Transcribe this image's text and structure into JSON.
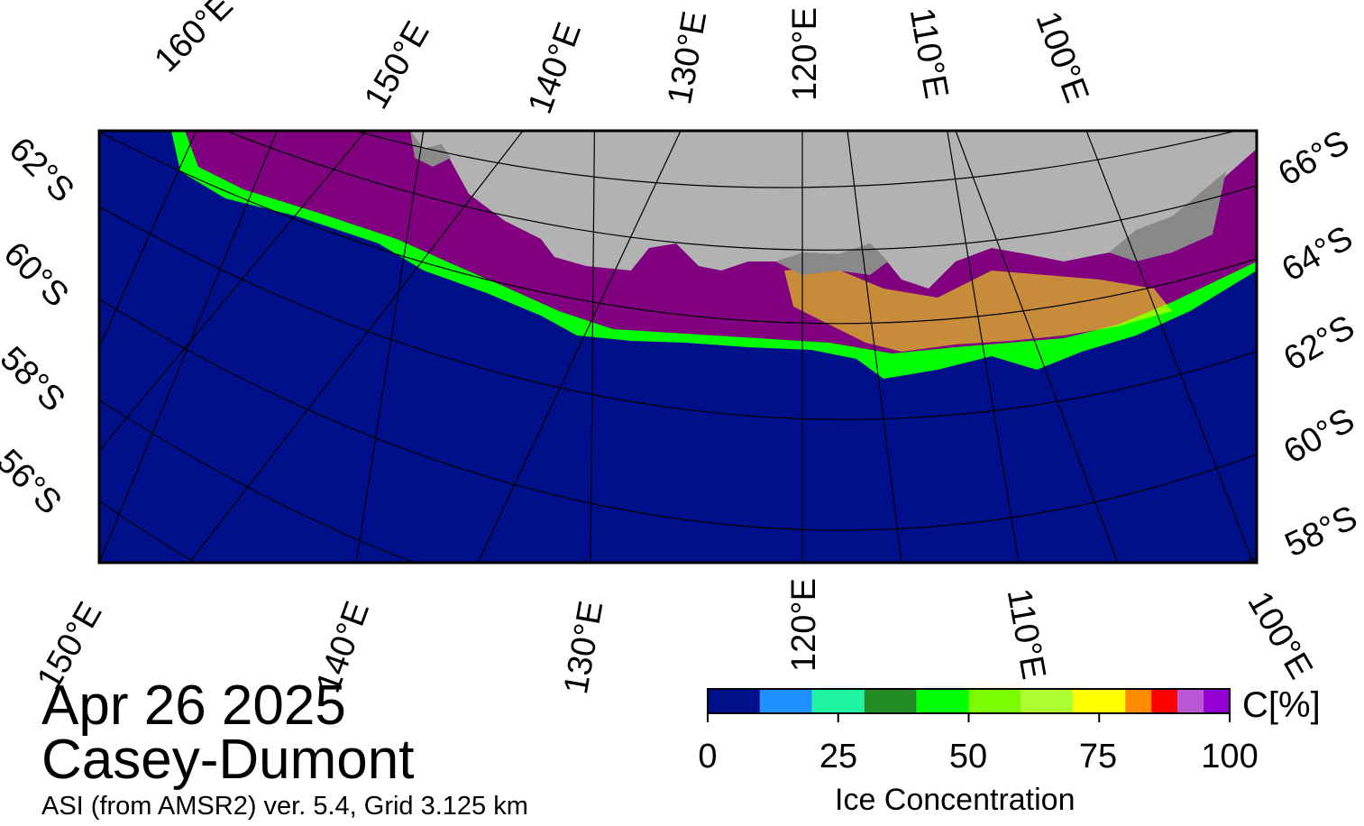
{
  "map": {
    "date": "Apr 26 2025",
    "region": "Casey-Dumont",
    "product": "ASI (from AMSR2) ver. 5.4,  Grid 3.125 km",
    "colors": {
      "ocean": "#000f8a",
      "land": "#b2b2b2",
      "ice_shelf": "#898989",
      "frame": "#000000"
    },
    "top_lon_labels": [
      "160°E",
      "150°E",
      "140°E",
      "130°E",
      "120°E",
      "110°E",
      "100°E"
    ],
    "bottom_lon_labels": [
      "150°E",
      "140°E",
      "130°E",
      "120°E",
      "110°E",
      "100°E"
    ],
    "left_lat_labels": [
      "62°S",
      "60°S",
      "58°S",
      "56°S"
    ],
    "right_lat_labels": [
      "66°S",
      "64°S",
      "62°S",
      "60°S",
      "58°S"
    ]
  },
  "colorbar": {
    "title": "Ice Concentration",
    "unit": "C[%]",
    "ticks": [
      "0",
      "25",
      "50",
      "75",
      "100"
    ],
    "bins": [
      {
        "range": [
          0,
          10
        ],
        "color": "#000f8a"
      },
      {
        "range": [
          10,
          20
        ],
        "color": "#1e90ff"
      },
      {
        "range": [
          20,
          30
        ],
        "color": "#1ef5a0"
      },
      {
        "range": [
          30,
          40
        ],
        "color": "#228b22"
      },
      {
        "range": [
          40,
          50
        ],
        "color": "#00ff00"
      },
      {
        "range": [
          50,
          60
        ],
        "color": "#7cfc00"
      },
      {
        "range": [
          60,
          70
        ],
        "color": "#adff2f"
      },
      {
        "range": [
          70,
          80
        ],
        "color": "#ffff00"
      },
      {
        "range": [
          80,
          85
        ],
        "color": "#ff8c00"
      },
      {
        "range": [
          85,
          90
        ],
        "color": "#ff0000"
      },
      {
        "range": [
          90,
          95
        ],
        "color": "#ba55d3"
      },
      {
        "range": [
          95,
          100
        ],
        "color": "#9400d3"
      }
    ],
    "max_color": "#800080"
  }
}
